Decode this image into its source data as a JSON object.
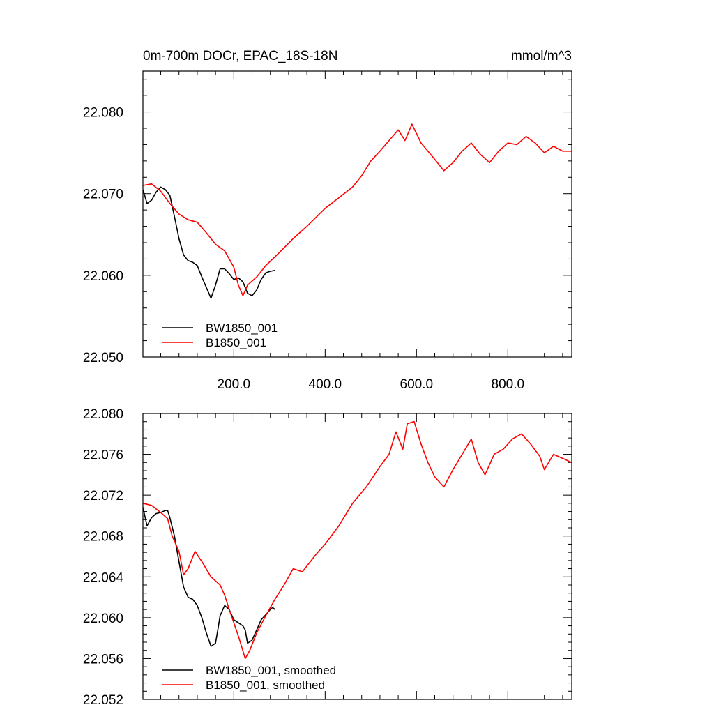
{
  "chart_data": [
    {
      "type": "line",
      "title": "0m-700m DOCr, EPAC_18S-18N",
      "units": "mmol/m^3",
      "xlim": [
        1,
        940
      ],
      "ylim": [
        22.05,
        22.085
      ],
      "xticks": [
        200,
        400,
        600,
        800
      ],
      "xtick_labels": [
        "200.0",
        "400.0",
        "600.0",
        "800.0"
      ],
      "yticks": [
        22.05,
        22.06,
        22.07,
        22.08
      ],
      "ytick_labels": [
        "22.050",
        "22.060",
        "22.070",
        "22.080"
      ],
      "grid": false,
      "legend_position": "bottom-left",
      "series": [
        {
          "name": "BW1850_001",
          "color": "#000000",
          "x": [
            1,
            10,
            20,
            30,
            40,
            50,
            60,
            70,
            80,
            90,
            100,
            110,
            120,
            130,
            140,
            150,
            160,
            170,
            180,
            190,
            200,
            210,
            220,
            230,
            240,
            250,
            260,
            270,
            280,
            290
          ],
          "y": [
            22.0705,
            22.0688,
            22.0692,
            22.0702,
            22.0708,
            22.0705,
            22.0698,
            22.0672,
            22.0645,
            22.0625,
            22.0618,
            22.0616,
            22.0612,
            22.0598,
            22.0585,
            22.0572,
            22.0588,
            22.0608,
            22.0608,
            22.0602,
            22.0595,
            22.0597,
            22.0592,
            22.0578,
            22.0575,
            22.0582,
            22.0595,
            22.0603,
            22.0605,
            22.0606
          ]
        },
        {
          "name": "B1850_001",
          "color": "#ff0000",
          "x": [
            1,
            20,
            40,
            60,
            80,
            100,
            120,
            140,
            160,
            180,
            200,
            210,
            220,
            230,
            250,
            270,
            300,
            330,
            360,
            400,
            430,
            460,
            480,
            500,
            520,
            540,
            560,
            575,
            590,
            610,
            640,
            660,
            680,
            700,
            720,
            740,
            760,
            780,
            800,
            820,
            840,
            860,
            880,
            900,
            920,
            940
          ],
          "y": [
            22.071,
            22.0712,
            22.0703,
            22.0688,
            22.0675,
            22.0668,
            22.0665,
            22.0652,
            22.0638,
            22.063,
            22.061,
            22.0588,
            22.0575,
            22.0588,
            22.0598,
            22.0612,
            22.0628,
            22.0645,
            22.066,
            22.0682,
            22.0695,
            22.0708,
            22.0722,
            22.074,
            22.0752,
            22.0765,
            22.0778,
            22.0765,
            22.0785,
            22.0762,
            22.0742,
            22.0728,
            22.0738,
            22.0752,
            22.0762,
            22.0748,
            22.0738,
            22.0752,
            22.0762,
            22.076,
            22.077,
            22.0762,
            22.075,
            22.0758,
            22.0752,
            22.0752
          ]
        }
      ]
    },
    {
      "type": "line",
      "xlim": [
        1,
        940
      ],
      "ylim": [
        22.052,
        22.08
      ],
      "xticks": [
        200,
        400,
        600,
        800
      ],
      "xtick_labels": [],
      "yticks": [
        22.052,
        22.056,
        22.06,
        22.064,
        22.068,
        22.072,
        22.076,
        22.08
      ],
      "ytick_labels": [
        "22.052",
        "22.056",
        "22.060",
        "22.064",
        "22.068",
        "22.072",
        "22.076",
        "22.080"
      ],
      "grid": false,
      "legend_position": "bottom-left",
      "series": [
        {
          "name": "BW1850_001, smoothed",
          "color": "#000000",
          "x": [
            1,
            10,
            20,
            30,
            40,
            50,
            55,
            60,
            70,
            80,
            90,
            100,
            110,
            120,
            130,
            140,
            150,
            160,
            165,
            170,
            180,
            190,
            200,
            210,
            220,
            225,
            230,
            240,
            250,
            260,
            270,
            280,
            285,
            290
          ],
          "y": [
            22.0708,
            22.069,
            22.0698,
            22.0702,
            22.0703,
            22.0705,
            22.0705,
            22.0698,
            22.068,
            22.0655,
            22.063,
            22.062,
            22.0618,
            22.0612,
            22.06,
            22.0585,
            22.0572,
            22.0575,
            22.0588,
            22.0602,
            22.0612,
            22.0608,
            22.0598,
            22.0595,
            22.0592,
            22.0588,
            22.0575,
            22.0578,
            22.0588,
            22.0598,
            22.0603,
            22.0608,
            22.061,
            22.0608
          ]
        },
        {
          "name": "B1850_001, smoothed",
          "color": "#ff0000",
          "x": [
            1,
            20,
            40,
            55,
            65,
            80,
            90,
            100,
            115,
            130,
            150,
            170,
            180,
            190,
            210,
            225,
            235,
            250,
            270,
            290,
            310,
            330,
            350,
            380,
            400,
            430,
            460,
            490,
            520,
            540,
            555,
            570,
            580,
            595,
            610,
            625,
            640,
            660,
            680,
            700,
            720,
            735,
            750,
            770,
            790,
            810,
            830,
            850,
            870,
            880,
            900,
            920,
            940
          ],
          "y": [
            22.0712,
            22.071,
            22.0703,
            22.0697,
            22.068,
            22.0665,
            22.0642,
            22.0648,
            22.0665,
            22.0655,
            22.064,
            22.0632,
            22.0622,
            22.0608,
            22.0582,
            22.056,
            22.0568,
            22.0585,
            22.0602,
            22.0618,
            22.0632,
            22.0648,
            22.0645,
            22.0662,
            22.0672,
            22.069,
            22.0712,
            22.0728,
            22.0748,
            22.076,
            22.0782,
            22.0765,
            22.079,
            22.0792,
            22.077,
            22.0752,
            22.0738,
            22.0728,
            22.0745,
            22.076,
            22.0775,
            22.0752,
            22.074,
            22.076,
            22.0765,
            22.0775,
            22.078,
            22.077,
            22.0758,
            22.0745,
            22.076,
            22.0756,
            22.0752
          ]
        }
      ]
    }
  ]
}
